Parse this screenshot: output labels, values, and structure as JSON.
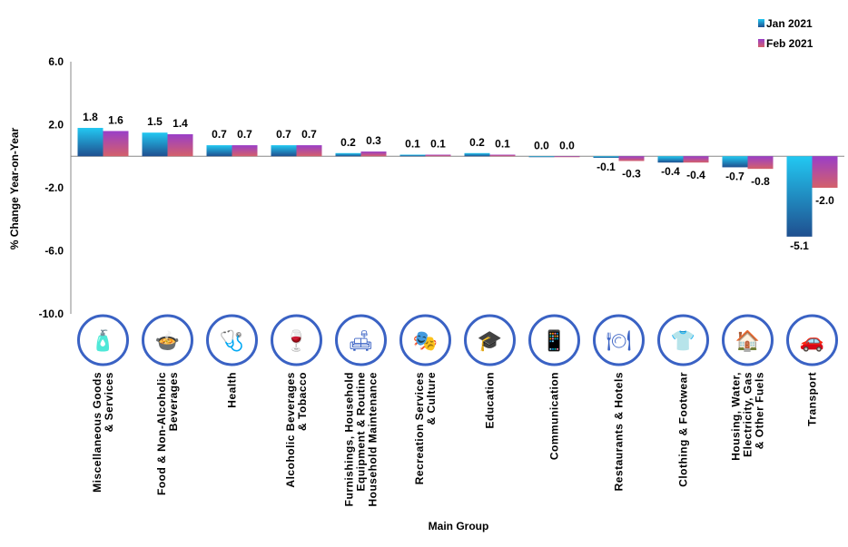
{
  "chart_data": {
    "type": "bar",
    "title": "",
    "xlabel": "Main Group",
    "ylabel": "% Change Year-on-Year",
    "ylim": [
      -10,
      6
    ],
    "yticks": [
      "6.0",
      "2.0",
      "-2.0",
      "-6.0",
      "-10.0"
    ],
    "ytick_values": [
      6,
      2,
      -2,
      -6,
      -10
    ],
    "legend_position": "top-right",
    "categories": [
      [
        "Miscellaneous Goods",
        "& Services"
      ],
      [
        "Food & Non-Alcoholic",
        "Beverages"
      ],
      [
        "Health"
      ],
      [
        "Alcoholic Beverages",
        "& Tobacco"
      ],
      [
        "Furnishings, Household",
        "Equipment & Routine",
        "Household Maintenance"
      ],
      [
        "Recreation Services",
        "& Culture"
      ],
      [
        "Education"
      ],
      [
        "Communication"
      ],
      [
        "Restaurants & Hotels"
      ],
      [
        "Clothing & Footwear"
      ],
      [
        "Housing, Water,",
        "Electricity, Gas",
        "& Other Fuels"
      ],
      [
        "Transport"
      ]
    ],
    "icons": [
      "misc-goods-icon",
      "food-beverage-icon",
      "health-icon",
      "alcohol-tobacco-icon",
      "furnishings-icon",
      "recreation-icon",
      "education-icon",
      "communication-icon",
      "restaurant-hotel-icon",
      "clothing-icon",
      "housing-icon",
      "transport-icon"
    ],
    "series": [
      {
        "name": "Jan 2021",
        "values": [
          1.8,
          1.5,
          0.7,
          0.7,
          0.2,
          0.1,
          0.2,
          0.0,
          -0.1,
          -0.4,
          -0.7,
          -5.1
        ],
        "labels": [
          "1.8",
          "1.5",
          "0.7",
          "0.7",
          "0.2",
          "0.1",
          "0.2",
          "0.0",
          "-0.1",
          "-0.4",
          "-0.7",
          "-5.1"
        ],
        "color_top": "#22c8f2",
        "color_bottom": "#1f4f8f"
      },
      {
        "name": "Feb 2021",
        "values": [
          1.6,
          1.4,
          0.7,
          0.7,
          0.3,
          0.1,
          0.1,
          0.0,
          -0.3,
          -0.4,
          -0.8,
          -2.0
        ],
        "labels": [
          "1.6",
          "1.4",
          "0.7",
          "0.7",
          "0.3",
          "0.1",
          "0.1",
          "0.0",
          "-0.3",
          "-0.4",
          "-0.8",
          "-2.0"
        ],
        "color_top": "#9a3ec8",
        "color_bottom": "#d4606a"
      }
    ]
  },
  "icon_color": "#3a62c4"
}
